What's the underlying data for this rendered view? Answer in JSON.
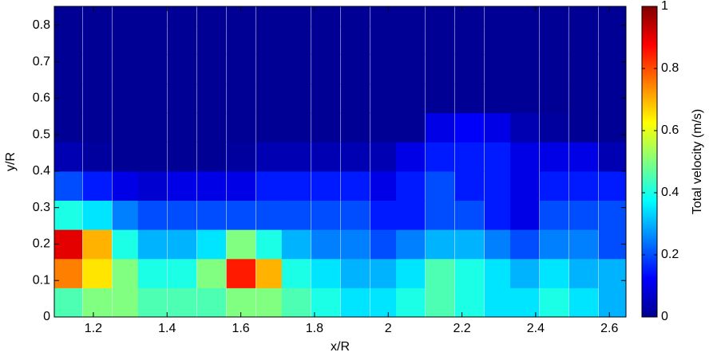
{
  "chart_data": {
    "type": "heatmap",
    "xlabel": "x/R",
    "ylabel": "y/R",
    "colorbar_label": "Total velocity (m/s)",
    "colormap": "jet",
    "xlim": [
      1.094,
      2.645
    ],
    "ylim": [
      0,
      0.852
    ],
    "xticks": [
      1.2,
      1.4,
      1.6,
      1.8,
      2,
      2.2,
      2.4,
      2.6
    ],
    "yticks": [
      0,
      0.1,
      0.2,
      0.3,
      0.4,
      0.5,
      0.6,
      0.7,
      0.8
    ],
    "clim": [
      0,
      1
    ],
    "cticks": [
      0,
      0.2,
      0.4,
      0.6,
      0.8,
      1
    ],
    "x": [
      1.13,
      1.21,
      1.29,
      1.36,
      1.44,
      1.52,
      1.6,
      1.68,
      1.75,
      1.83,
      1.91,
      1.99,
      2.06,
      2.14,
      2.22,
      2.3,
      2.37,
      2.45,
      2.53,
      2.61
    ],
    "y": [
      0.04,
      0.12,
      0.2,
      0.28,
      0.36,
      0.44,
      0.52,
      0.6,
      0.68,
      0.76,
      0.84
    ],
    "z": [
      [
        0.45,
        0.5,
        0.5,
        0.45,
        0.45,
        0.45,
        0.5,
        0.5,
        0.45,
        0.4,
        0.35,
        0.35,
        0.4,
        0.45,
        0.4,
        0.35,
        0.35,
        0.4,
        0.35,
        0.3
      ],
      [
        0.75,
        0.65,
        0.5,
        0.4,
        0.4,
        0.5,
        0.85,
        0.7,
        0.4,
        0.35,
        0.3,
        0.3,
        0.35,
        0.45,
        0.4,
        0.35,
        0.3,
        0.35,
        0.3,
        0.3
      ],
      [
        0.9,
        0.7,
        0.4,
        0.3,
        0.3,
        0.35,
        0.5,
        0.4,
        0.3,
        0.25,
        0.25,
        0.2,
        0.25,
        0.3,
        0.3,
        0.25,
        0.2,
        0.25,
        0.25,
        0.2
      ],
      [
        0.4,
        0.35,
        0.25,
        0.2,
        0.2,
        0.2,
        0.2,
        0.2,
        0.2,
        0.2,
        0.2,
        0.15,
        0.15,
        0.2,
        0.2,
        0.15,
        0.1,
        0.2,
        0.2,
        0.2
      ],
      [
        0.2,
        0.15,
        0.1,
        0.08,
        0.1,
        0.1,
        0.1,
        0.15,
        0.15,
        0.15,
        0.15,
        0.1,
        0.15,
        0.2,
        0.15,
        0.15,
        0.1,
        0.15,
        0.15,
        0.15
      ],
      [
        0.05,
        0.03,
        0.02,
        0.02,
        0.02,
        0.02,
        0.03,
        0.05,
        0.05,
        0.05,
        0.05,
        0.05,
        0.1,
        0.15,
        0.15,
        0.15,
        0.1,
        0.1,
        0.1,
        0.05
      ],
      [
        0.02,
        0.02,
        0.02,
        0.02,
        0.02,
        0.02,
        0.02,
        0.02,
        0.02,
        0.02,
        0.02,
        0.02,
        0.02,
        0.1,
        0.12,
        0.1,
        0.05,
        0.03,
        0.02,
        0.02
      ],
      [
        0.02,
        0.02,
        0.02,
        0.02,
        0.02,
        0.02,
        0.02,
        0.02,
        0.02,
        0.02,
        0.02,
        0.02,
        0.02,
        0.02,
        0.02,
        0.02,
        0.02,
        0.02,
        0.02,
        0.02
      ],
      [
        0.02,
        0.02,
        0.02,
        0.02,
        0.02,
        0.02,
        0.02,
        0.02,
        0.02,
        0.02,
        0.02,
        0.02,
        0.02,
        0.02,
        0.02,
        0.02,
        0.02,
        0.02,
        0.02,
        0.02
      ],
      [
        0.02,
        0.02,
        0.02,
        0.02,
        0.02,
        0.02,
        0.02,
        0.02,
        0.02,
        0.02,
        0.02,
        0.02,
        0.02,
        0.02,
        0.02,
        0.02,
        0.02,
        0.02,
        0.02,
        0.02
      ],
      [
        0.02,
        0.02,
        0.02,
        0.02,
        0.02,
        0.02,
        0.02,
        0.02,
        0.02,
        0.02,
        0.02,
        0.02,
        0.02,
        0.02,
        0.02,
        0.02,
        0.02,
        0.02,
        0.02,
        0.02
      ]
    ]
  }
}
